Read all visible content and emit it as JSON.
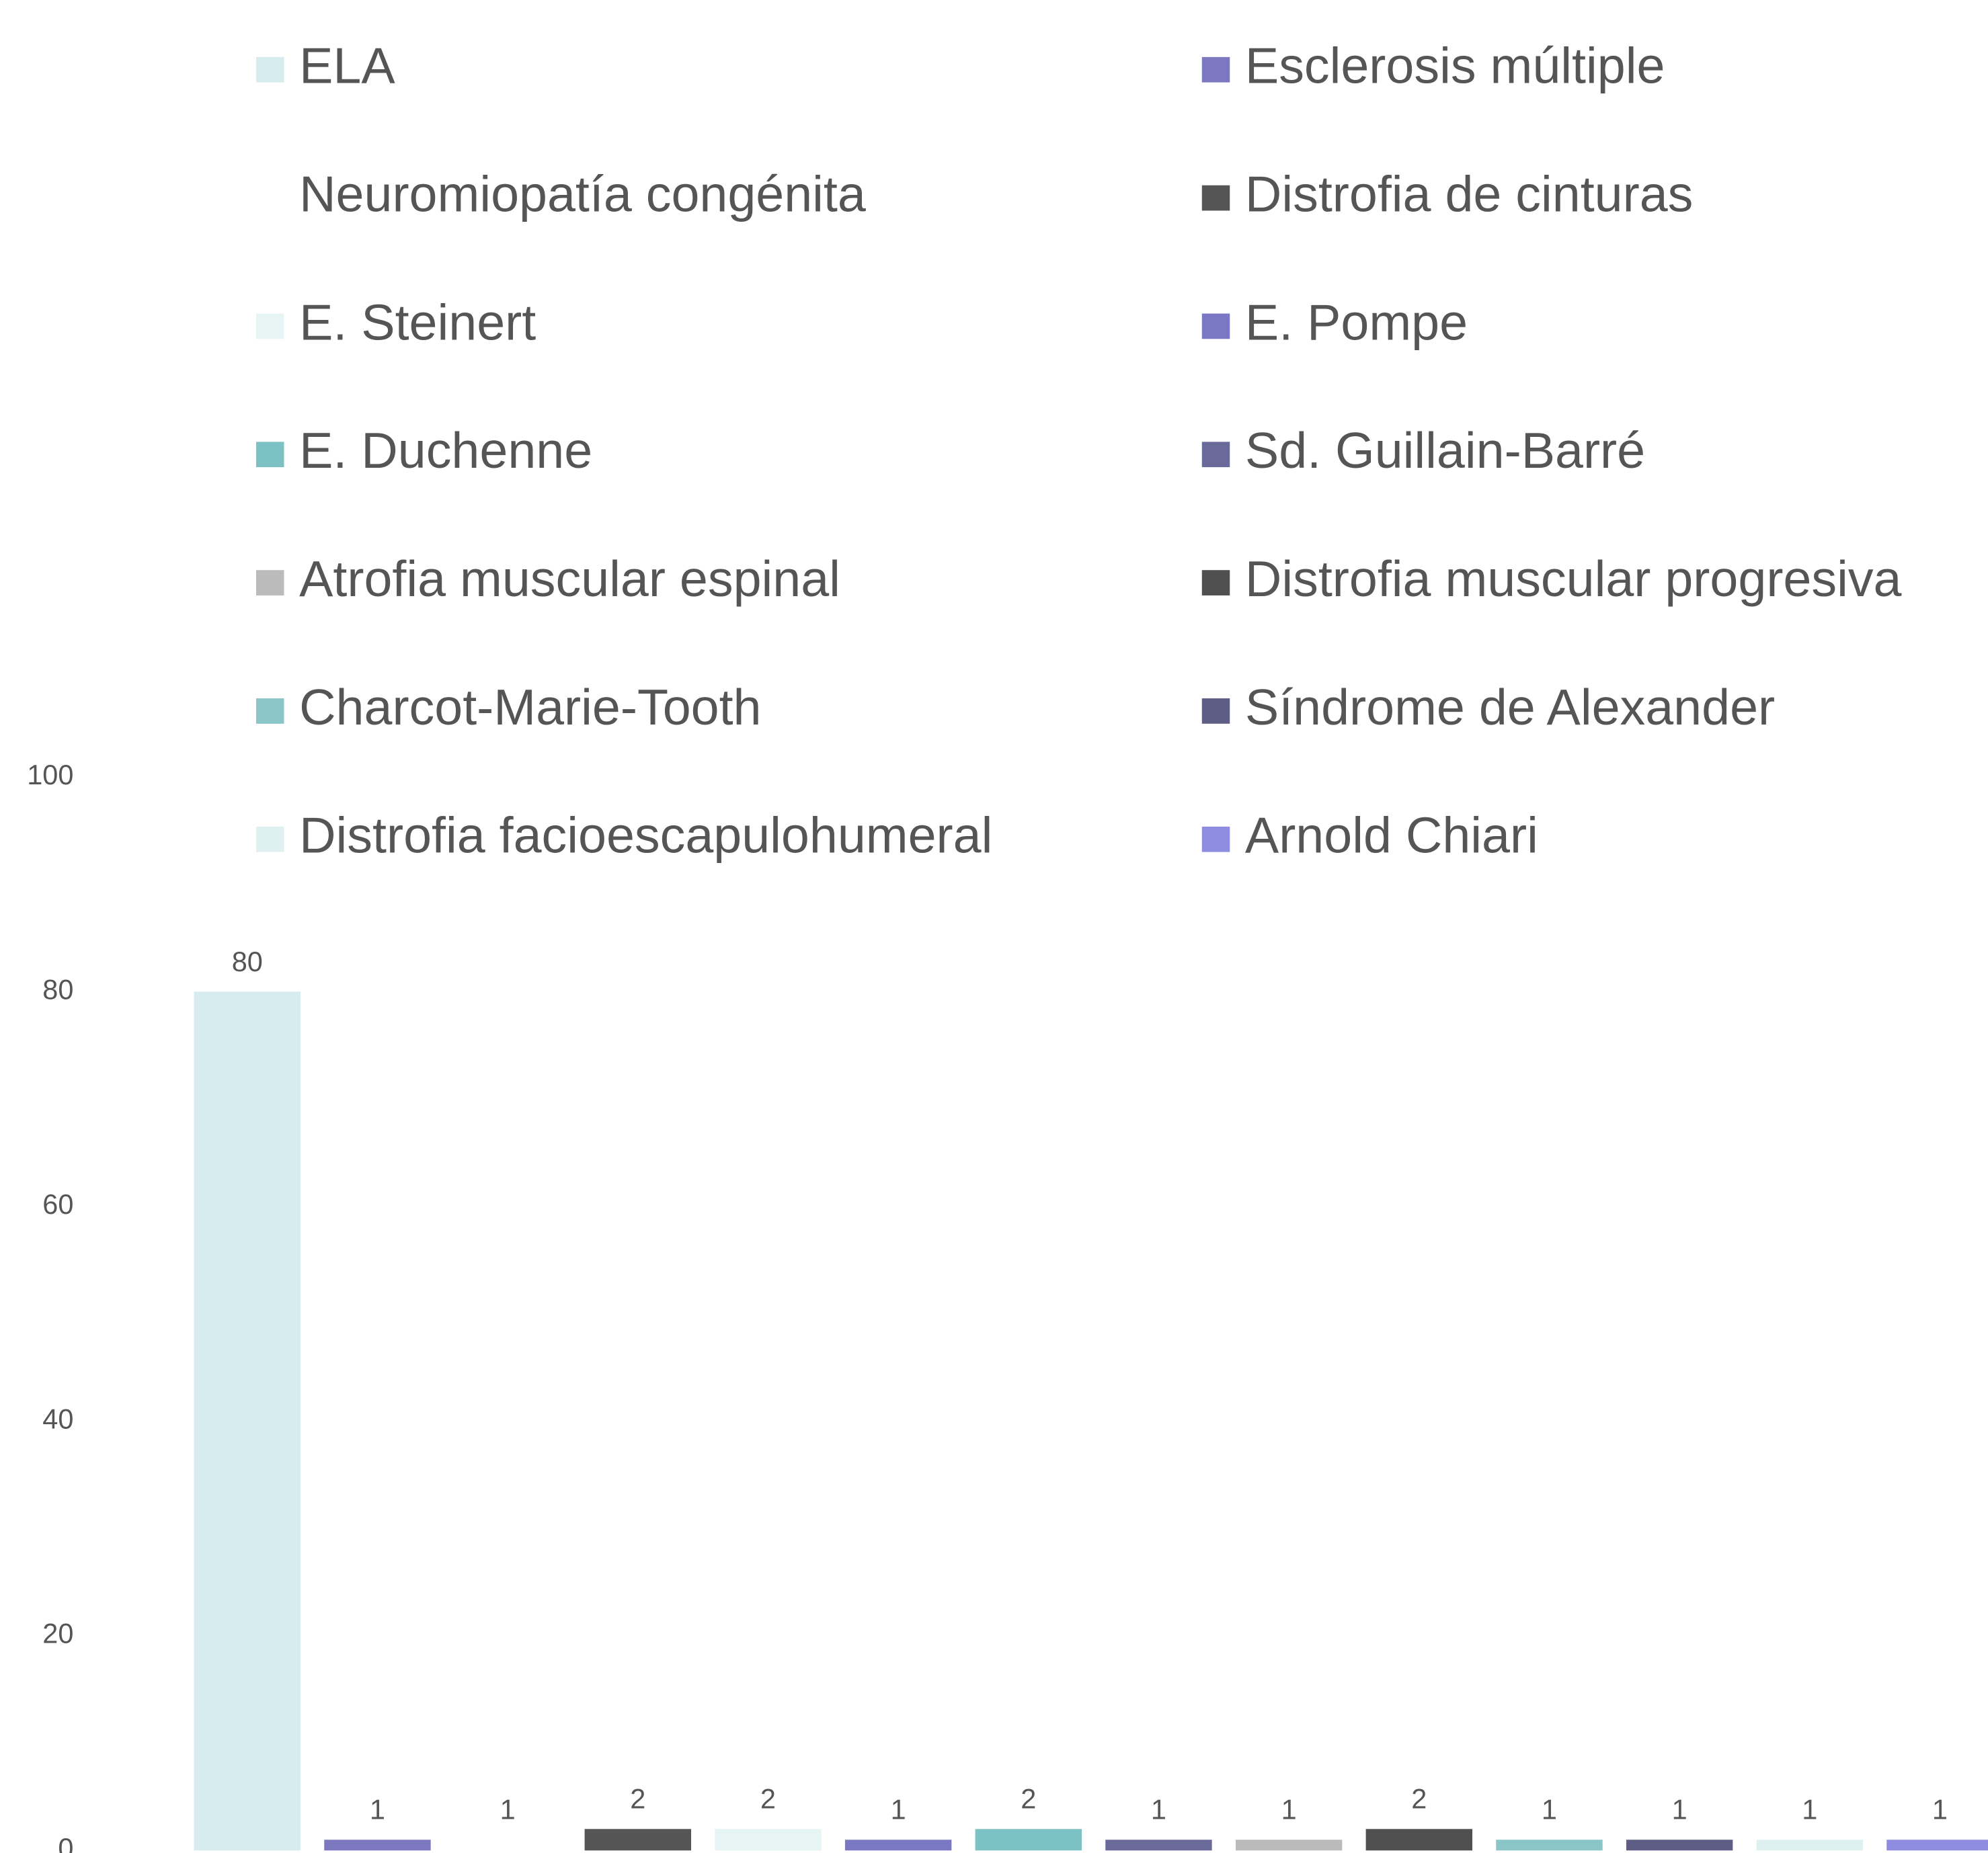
{
  "chart_data": {
    "type": "bar",
    "categories": [
      "ELA",
      "Esclerosis múltiple",
      "Neuromiopatía congénita",
      "Distrofia de cinturas",
      "E. Steinert",
      "E. Pompe",
      "E. Duchenne",
      "Sd. Guillain-Barré",
      "Atrofia muscular espinal",
      "Distrofia muscular progresiva",
      "Charcot-Marie-Tooth",
      "Síndrome de Alexander",
      "Distrofia facioescapulohumeral",
      "Arnold Chiari"
    ],
    "values": [
      80,
      1,
      1,
      2,
      2,
      1,
      2,
      1,
      1,
      2,
      1,
      1,
      1,
      1
    ],
    "colors": [
      "#d6ecee",
      "#7b78c0",
      "#ffffff",
      "#555555",
      "#e6f4f4",
      "#7a78c2",
      "#7cc2c4",
      "#6a6a9a",
      "#bbbbbb",
      "#505050",
      "#8ac6c8",
      "#5d5d86",
      "#dff0f0",
      "#8e8ce0"
    ],
    "ylim": [
      0,
      100
    ],
    "yticks": [
      0,
      20,
      40,
      60,
      80,
      100
    ],
    "grid": false,
    "legend": "top"
  }
}
